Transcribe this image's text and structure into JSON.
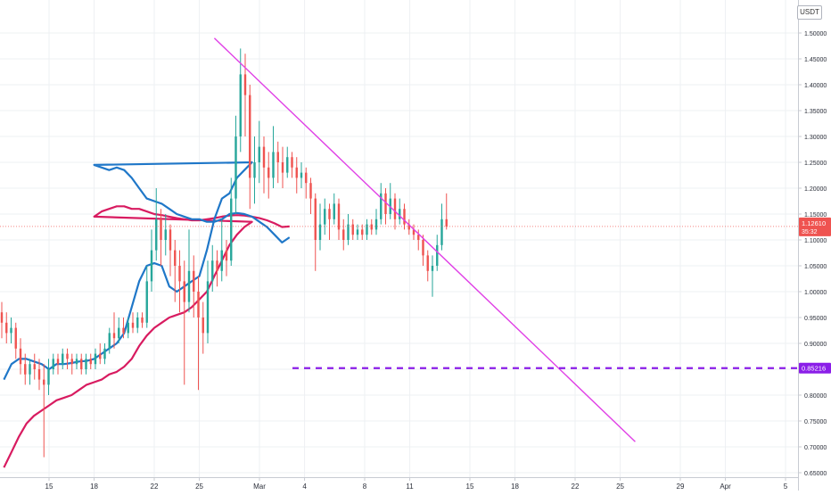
{
  "currency_badge": "USDT",
  "chart_data": {
    "type": "candlestick",
    "x_ticks": [
      "15",
      "18",
      "22",
      "25",
      "Mar",
      "4",
      "8",
      "11",
      "15",
      "18",
      "22",
      "25",
      "29",
      "Apr",
      "5"
    ],
    "y_ticks": [
      "1.50000",
      "1.45000",
      "1.40000",
      "1.35000",
      "1.30000",
      "1.25000",
      "1.20000",
      "1.15000",
      "1.10000",
      "1.05000",
      "1.00000",
      "0.95000",
      "0.90000",
      "0.85000",
      "0.80000",
      "0.75000",
      "0.70000",
      "0.65000"
    ],
    "y_range": [
      0.64,
      1.54
    ],
    "last_price": {
      "value": 1.1261,
      "label": "1.12610",
      "countdown": "35:32",
      "color": "#ef5350"
    },
    "support_line": {
      "value": 0.85216,
      "label": "0.85216",
      "color": "#8b1ee8",
      "style": "dashed"
    },
    "trend_line": {
      "color": "#e040e6",
      "points": [
        [
          "Feb 26",
          1.49
        ],
        [
          "Apr 6",
          0.71
        ]
      ]
    },
    "ma_fast": {
      "color": "#1f77c8",
      "points": [
        [
          "Feb 12 00:00",
          0.83
        ],
        [
          "Feb 12 12:00",
          0.86
        ],
        [
          "Feb 13 00:00",
          0.87
        ],
        [
          "Feb 13 12:00",
          0.87
        ],
        [
          "Feb 14 00:00",
          0.865
        ],
        [
          "Feb 14 12:00",
          0.86
        ],
        [
          "Feb 15 00:00",
          0.85
        ],
        [
          "Feb 15 12:00",
          0.86
        ],
        [
          "Feb 16 00:00",
          0.86
        ],
        [
          "Feb 16 12:00",
          0.862
        ],
        [
          "Feb 17 00:00",
          0.865
        ],
        [
          "Feb 17 12:00",
          0.866
        ],
        [
          "Feb 18 00:00",
          0.87
        ],
        [
          "Feb 18 12:00",
          0.88
        ],
        [
          "Feb 19 00:00",
          0.89
        ],
        [
          "Feb 19 12:00",
          0.9
        ],
        [
          "Feb 20 00:00",
          0.92
        ],
        [
          "Feb 20 12:00",
          0.97
        ],
        [
          "Feb 21 00:00",
          1.02
        ],
        [
          "Feb 21 12:00",
          1.05
        ],
        [
          "Feb 22 00:00",
          1.055
        ],
        [
          "Feb 22 12:00",
          1.05
        ],
        [
          "Feb 23 00:00",
          1.01
        ],
        [
          "Feb 23 12:00",
          1.0
        ],
        [
          "Feb 24 00:00",
          1.01
        ],
        [
          "Feb 24 12:00",
          1.02
        ],
        [
          "Feb 25 00:00",
          1.03
        ],
        [
          "Feb 25 12:00",
          1.08
        ],
        [
          "Feb 26 00:00",
          1.14
        ],
        [
          "Feb 26 12:00",
          1.18
        ],
        [
          "Feb 27 00:00",
          1.19
        ],
        [
          "Feb 27 12:00",
          1.22
        ],
        [
          "Feb 28 00:00",
          1.235
        ],
        [
          "Feb 28 12:00",
          1.25
        ],
        [
          "Mar 1 00:00",
          1.245
        ],
        [
          "Mar 1 12:00",
          1.24
        ],
        [
          "Mar 2 00:00",
          1.235
        ],
        [
          "Mar 2 12:00",
          1.24
        ],
        [
          "Mar 3 00:00",
          1.235
        ],
        [
          "Mar 3 12:00",
          1.22
        ],
        [
          "Mar 4 00:00",
          1.2
        ],
        [
          "Mar 4 12:00",
          1.18
        ],
        [
          "Mar 5 00:00",
          1.175
        ],
        [
          "Mar 5 12:00",
          1.17
        ],
        [
          "Mar 6 00:00",
          1.16
        ],
        [
          "Mar 6 12:00",
          1.15
        ],
        [
          "Mar 7 00:00",
          1.145
        ],
        [
          "Mar 7 12:00",
          1.14
        ],
        [
          "Mar 8 00:00",
          1.14
        ],
        [
          "Mar 8 12:00",
          1.135
        ],
        [
          "Mar 9 00:00",
          1.135
        ],
        [
          "Mar 9 12:00",
          1.14
        ],
        [
          "Mar 10 00:00",
          1.15
        ],
        [
          "Mar 10 12:00",
          1.152
        ],
        [
          "Mar 11 00:00",
          1.15
        ],
        [
          "Mar 11 12:00",
          1.145
        ],
        [
          "Mar 12 00:00",
          1.135
        ],
        [
          "Mar 12 12:00",
          1.125
        ],
        [
          "Mar 13 00:00",
          1.11
        ],
        [
          "Mar 13 12:00",
          1.095
        ],
        [
          "Mar 14 00:00",
          1.105
        ]
      ]
    },
    "ma_slow": {
      "color": "#d81b60",
      "points": [
        [
          "Feb 12 00:00",
          0.66
        ],
        [
          "Feb 12 12:00",
          0.69
        ],
        [
          "Feb 13 00:00",
          0.72
        ],
        [
          "Feb 13 12:00",
          0.745
        ],
        [
          "Feb 14 00:00",
          0.76
        ],
        [
          "Feb 14 12:00",
          0.77
        ],
        [
          "Feb 15 00:00",
          0.78
        ],
        [
          "Feb 15 12:00",
          0.79
        ],
        [
          "Feb 16 00:00",
          0.795
        ],
        [
          "Feb 16 12:00",
          0.8
        ],
        [
          "Feb 17 00:00",
          0.81
        ],
        [
          "Feb 17 12:00",
          0.82
        ],
        [
          "Feb 18 00:00",
          0.825
        ],
        [
          "Feb 18 12:00",
          0.83
        ],
        [
          "Feb 19 00:00",
          0.84
        ],
        [
          "Feb 19 12:00",
          0.845
        ],
        [
          "Feb 20 00:00",
          0.855
        ],
        [
          "Feb 20 12:00",
          0.87
        ],
        [
          "Feb 21 00:00",
          0.895
        ],
        [
          "Feb 21 12:00",
          0.915
        ],
        [
          "Feb 22 00:00",
          0.93
        ],
        [
          "Feb 22 12:00",
          0.94
        ],
        [
          "Feb 23 00:00",
          0.95
        ],
        [
          "Feb 23 12:00",
          0.955
        ],
        [
          "Feb 24 00:00",
          0.96
        ],
        [
          "Feb 24 12:00",
          0.97
        ],
        [
          "Feb 25 00:00",
          0.985
        ],
        [
          "Feb 25 12:00",
          1.0
        ],
        [
          "Feb 26 00:00",
          1.03
        ],
        [
          "Feb 26 12:00",
          1.06
        ],
        [
          "Feb 27 00:00",
          1.09
        ],
        [
          "Feb 27 12:00",
          1.11
        ],
        [
          "Feb 28 00:00",
          1.125
        ],
        [
          "Feb 28 12:00",
          1.135
        ],
        [
          "Mar 1 00:00",
          1.145
        ],
        [
          "Mar 1 12:00",
          1.155
        ],
        [
          "Mar 2 00:00",
          1.16
        ],
        [
          "Mar 2 12:00",
          1.165
        ],
        [
          "Mar 3 00:00",
          1.165
        ],
        [
          "Mar 3 12:00",
          1.16
        ],
        [
          "Mar 4 00:00",
          1.16
        ],
        [
          "Mar 4 12:00",
          1.155
        ],
        [
          "Mar 5 00:00",
          1.15
        ],
        [
          "Mar 5 12:00",
          1.148
        ],
        [
          "Mar 6 00:00",
          1.145
        ],
        [
          "Mar 6 12:00",
          1.142
        ],
        [
          "Mar 7 00:00",
          1.14
        ],
        [
          "Mar 7 12:00",
          1.138
        ],
        [
          "Mar 8 00:00",
          1.138
        ],
        [
          "Mar 8 12:00",
          1.14
        ],
        [
          "Mar 9 00:00",
          1.142
        ],
        [
          "Mar 9 12:00",
          1.145
        ],
        [
          "Mar 10 00:00",
          1.147
        ],
        [
          "Mar 10 12:00",
          1.148
        ],
        [
          "Mar 11 00:00",
          1.147
        ],
        [
          "Mar 11 12:00",
          1.145
        ],
        [
          "Mar 12 00:00",
          1.142
        ],
        [
          "Mar 12 12:00",
          1.138
        ],
        [
          "Mar 13 00:00",
          1.132
        ],
        [
          "Mar 13 12:00",
          1.125
        ],
        [
          "Mar 14 00:00",
          1.126
        ]
      ]
    },
    "candles": [
      [
        0.96,
        0.94,
        0.98,
        0.91
      ],
      [
        0.94,
        0.92,
        0.96,
        0.9
      ],
      [
        0.92,
        0.93,
        0.95,
        0.9
      ],
      [
        0.93,
        0.89,
        0.94,
        0.87
      ],
      [
        0.89,
        0.86,
        0.91,
        0.84
      ],
      [
        0.86,
        0.84,
        0.88,
        0.82
      ],
      [
        0.84,
        0.86,
        0.87,
        0.82
      ],
      [
        0.86,
        0.85,
        0.88,
        0.83
      ],
      [
        0.85,
        0.83,
        0.87,
        0.81
      ],
      [
        0.83,
        0.82,
        0.86,
        0.68
      ],
      [
        0.82,
        0.85,
        0.87,
        0.8
      ],
      [
        0.85,
        0.87,
        0.88,
        0.84
      ],
      [
        0.87,
        0.86,
        0.88,
        0.84
      ],
      [
        0.86,
        0.88,
        0.89,
        0.85
      ],
      [
        0.88,
        0.87,
        0.89,
        0.85
      ],
      [
        0.87,
        0.86,
        0.88,
        0.84
      ],
      [
        0.86,
        0.87,
        0.88,
        0.85
      ],
      [
        0.87,
        0.85,
        0.88,
        0.84
      ],
      [
        0.85,
        0.87,
        0.88,
        0.84
      ],
      [
        0.87,
        0.86,
        0.88,
        0.85
      ],
      [
        0.86,
        0.88,
        0.89,
        0.85
      ],
      [
        0.88,
        0.87,
        0.9,
        0.86
      ],
      [
        0.87,
        0.89,
        0.9,
        0.86
      ],
      [
        0.89,
        0.92,
        0.93,
        0.88
      ],
      [
        0.92,
        0.91,
        0.96,
        0.89
      ],
      [
        0.91,
        0.93,
        0.95,
        0.9
      ],
      [
        0.93,
        0.92,
        0.95,
        0.91
      ],
      [
        0.92,
        0.94,
        0.95,
        0.91
      ],
      [
        0.94,
        0.93,
        0.96,
        0.92
      ],
      [
        0.93,
        0.95,
        0.96,
        0.92
      ],
      [
        0.95,
        0.94,
        0.96,
        0.93
      ],
      [
        0.94,
        1.02,
        1.05,
        0.93
      ],
      [
        1.02,
        1.08,
        1.12,
        1.0
      ],
      [
        1.08,
        1.14,
        1.2,
        1.06
      ],
      [
        1.14,
        1.1,
        1.16,
        1.05
      ],
      [
        1.1,
        1.12,
        1.15,
        1.07
      ],
      [
        1.12,
        1.08,
        1.13,
        1.03
      ],
      [
        1.08,
        1.05,
        1.1,
        0.98
      ],
      [
        1.05,
        1.02,
        1.08,
        0.96
      ],
      [
        1.02,
        0.98,
        1.06,
        0.82
      ],
      [
        0.98,
        1.04,
        1.12,
        0.96
      ],
      [
        1.04,
        1.0,
        1.07,
        0.95
      ],
      [
        1.0,
        0.95,
        1.03,
        0.81
      ],
      [
        0.95,
        0.92,
        0.98,
        0.88
      ],
      [
        0.92,
        1.02,
        1.06,
        0.9
      ],
      [
        1.02,
        1.06,
        1.09,
        1.0
      ],
      [
        1.06,
        1.04,
        1.08,
        1.01
      ],
      [
        1.04,
        1.08,
        1.14,
        1.02
      ],
      [
        1.08,
        1.06,
        1.1,
        1.03
      ],
      [
        1.06,
        1.18,
        1.22,
        1.05
      ],
      [
        1.18,
        1.3,
        1.34,
        1.15
      ],
      [
        1.3,
        1.42,
        1.47,
        1.27
      ],
      [
        1.42,
        1.38,
        1.46,
        1.3
      ],
      [
        1.38,
        1.22,
        1.4,
        1.16
      ],
      [
        1.22,
        1.25,
        1.3,
        1.17
      ],
      [
        1.25,
        1.28,
        1.33,
        1.21
      ],
      [
        1.28,
        1.24,
        1.3,
        1.19
      ],
      [
        1.24,
        1.22,
        1.27,
        1.18
      ],
      [
        1.22,
        1.27,
        1.32,
        1.2
      ],
      [
        1.27,
        1.25,
        1.29,
        1.21
      ],
      [
        1.25,
        1.23,
        1.28,
        1.2
      ],
      [
        1.23,
        1.26,
        1.28,
        1.22
      ],
      [
        1.26,
        1.24,
        1.27,
        1.22
      ],
      [
        1.24,
        1.22,
        1.26,
        1.19
      ],
      [
        1.22,
        1.23,
        1.25,
        1.2
      ],
      [
        1.23,
        1.21,
        1.24,
        1.18
      ],
      [
        1.21,
        1.18,
        1.22,
        1.15
      ],
      [
        1.18,
        1.1,
        1.19,
        1.04
      ],
      [
        1.1,
        1.13,
        1.17,
        1.08
      ],
      [
        1.13,
        1.16,
        1.18,
        1.11
      ],
      [
        1.16,
        1.14,
        1.17,
        1.1
      ],
      [
        1.14,
        1.17,
        1.19,
        1.13
      ],
      [
        1.17,
        1.12,
        1.18,
        1.1
      ],
      [
        1.12,
        1.1,
        1.14,
        1.08
      ],
      [
        1.1,
        1.13,
        1.15,
        1.09
      ],
      [
        1.13,
        1.11,
        1.14,
        1.1
      ],
      [
        1.11,
        1.12,
        1.13,
        1.1
      ],
      [
        1.12,
        1.11,
        1.13,
        1.1
      ],
      [
        1.11,
        1.13,
        1.14,
        1.1
      ],
      [
        1.13,
        1.12,
        1.14,
        1.11
      ],
      [
        1.12,
        1.14,
        1.16,
        1.11
      ],
      [
        1.14,
        1.19,
        1.21,
        1.13
      ],
      [
        1.19,
        1.15,
        1.2,
        1.13
      ],
      [
        1.15,
        1.18,
        1.21,
        1.14
      ],
      [
        1.18,
        1.14,
        1.19,
        1.12
      ],
      [
        1.14,
        1.16,
        1.18,
        1.13
      ],
      [
        1.16,
        1.13,
        1.17,
        1.12
      ],
      [
        1.13,
        1.12,
        1.14,
        1.11
      ],
      [
        1.12,
        1.11,
        1.13,
        1.1
      ],
      [
        1.11,
        1.1,
        1.12,
        1.08
      ],
      [
        1.1,
        1.07,
        1.11,
        1.05
      ],
      [
        1.07,
        1.04,
        1.08,
        1.02
      ],
      [
        1.04,
        1.05,
        1.07,
        0.99
      ],
      [
        1.05,
        1.09,
        1.11,
        1.04
      ],
      [
        1.09,
        1.14,
        1.17,
        1.08
      ],
      [
        1.14,
        1.126,
        1.19,
        1.12
      ]
    ]
  }
}
